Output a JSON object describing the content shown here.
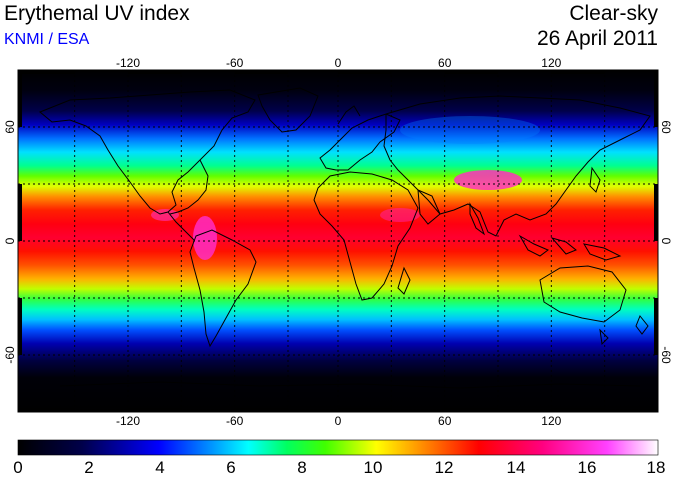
{
  "header": {
    "title": "Erythemal UV index",
    "source": "KNMI / ESA",
    "condition": "Clear-sky",
    "date": "26 April 2011"
  },
  "map": {
    "lon_ticks": [
      "-120",
      "-60",
      "0",
      "60",
      "120"
    ],
    "lat_ticks_left": [
      "60",
      "0",
      "-60"
    ],
    "lat_ticks_right": [
      "60",
      "0",
      "-60"
    ],
    "gridlines": "dashed every 30 degrees"
  },
  "colorbar": {
    "min": 0,
    "max": 18,
    "labels": [
      "0",
      "2",
      "4",
      "6",
      "8",
      "10",
      "12",
      "14",
      "16",
      "18"
    ],
    "colors": [
      "#000000",
      "#00004a",
      "#0000ff",
      "#0090ff",
      "#00ffff",
      "#00ff60",
      "#40ff00",
      "#ffff00",
      "#ff8000",
      "#ff0000",
      "#ff0080",
      "#ff40ff",
      "#ffffff"
    ]
  }
}
